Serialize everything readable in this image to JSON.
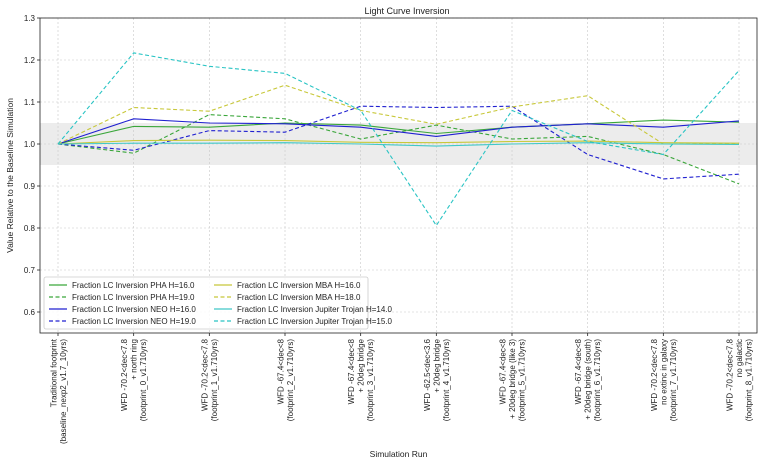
{
  "chart_data": {
    "type": "line",
    "title": "Light Curve Inversion",
    "xlabel": "Simulation Run",
    "ylabel": "Value Relative to the Baseline Simulation",
    "ylim": [
      0.55,
      1.3
    ],
    "yticks": [
      "0.6",
      "0.7",
      "0.8",
      "0.9",
      "1.0",
      "1.1",
      "1.2",
      "1.3"
    ],
    "ytick_values": [
      0.6,
      0.7,
      0.8,
      0.9,
      1.0,
      1.1,
      1.2,
      1.3
    ],
    "grid": true,
    "legend_position": "lower-left",
    "band": [
      0.95,
      1.05
    ],
    "categories": [
      [
        "Traditional footprint",
        "(baseline_nexp2_v1.7_10yrs)"
      ],
      [
        "WFD -70.2<dec<7.8",
        "+ north ring",
        "(footprint_0_v1.710yrs)"
      ],
      [
        "WFD -70.2<dec<7.8",
        "(footprint_1_v1.710yrs)"
      ],
      [
        "WFD -67.4<dec<8",
        "(footprint_2_v1.710yrs)"
      ],
      [
        "WFD -67.4<dec<8",
        "+ 20deg bridge",
        "(footprint_3_v1.710yrs)"
      ],
      [
        "WFD -62.5<dec<3.6",
        "+ 20deg bridge",
        "(footprint_4_v1.710yrs)"
      ],
      [
        "WFD -67.4<dec<8",
        "+ 20deg bridge (like 3)",
        "(footprint_5_v1.710yrs)"
      ],
      [
        "WFD -67.4<dec<8",
        "+ 20deg bridge (south)",
        "(footprint_6_v1.710yrs)"
      ],
      [
        "WFD -70.2<dec<7.8",
        "no extinc in galaxy",
        "(footprint_7_v1.710yrs)"
      ],
      [
        "WFD -70.2<dec<7.8",
        "no galactic",
        "(footprint_8_v1.710yrs)"
      ]
    ],
    "series": [
      {
        "name": "Fraction LC Inversion PHA H=16.0",
        "color": "#3aa63a",
        "dash": "solid",
        "values": [
          1.0,
          1.042,
          1.04,
          1.05,
          1.045,
          1.025,
          1.04,
          1.048,
          1.057,
          1.052
        ]
      },
      {
        "name": "Fraction LC Inversion PHA H=19.0",
        "color": "#3aa63a",
        "dash": "dashed",
        "values": [
          1.0,
          0.978,
          1.07,
          1.06,
          1.012,
          1.045,
          1.012,
          1.018,
          0.975,
          0.905
        ]
      },
      {
        "name": "Fraction LC Inversion NEO H=16.0",
        "color": "#2020d0",
        "dash": "solid",
        "values": [
          1.0,
          1.06,
          1.05,
          1.048,
          1.04,
          1.018,
          1.04,
          1.048,
          1.04,
          1.055
        ]
      },
      {
        "name": "Fraction LC Inversion NEO H=19.0",
        "color": "#2020d0",
        "dash": "dashed",
        "values": [
          1.0,
          0.985,
          1.032,
          1.028,
          1.09,
          1.087,
          1.09,
          0.975,
          0.917,
          0.928
        ]
      },
      {
        "name": "Fraction LC Inversion MBA H=16.0",
        "color": "#c8c83a",
        "dash": "solid",
        "values": [
          1.0,
          1.008,
          1.009,
          1.008,
          1.004,
          1.003,
          1.006,
          1.007,
          1.003,
          1.002
        ]
      },
      {
        "name": "Fraction LC Inversion MBA H=18.0",
        "color": "#c8c83a",
        "dash": "dashed",
        "values": [
          1.0,
          1.087,
          1.078,
          1.14,
          1.08,
          1.047,
          1.088,
          1.115,
          1.0,
          1.0
        ]
      },
      {
        "name": "Fraction LC Inversion Jupiter Trojan H=14.0",
        "color": "#40c8c8",
        "dash": "solid",
        "values": [
          1.0,
          1.002,
          1.002,
          1.003,
          1.0,
          0.995,
          1.0,
          1.003,
          1.0,
          0.999
        ]
      },
      {
        "name": "Fraction LC Inversion Jupiter Trojan H=15.0",
        "color": "#29c4c4",
        "dash": "dashed",
        "values": [
          1.0,
          1.217,
          1.185,
          1.168,
          1.08,
          0.806,
          1.08,
          1.006,
          0.975,
          1.175
        ]
      }
    ]
  }
}
